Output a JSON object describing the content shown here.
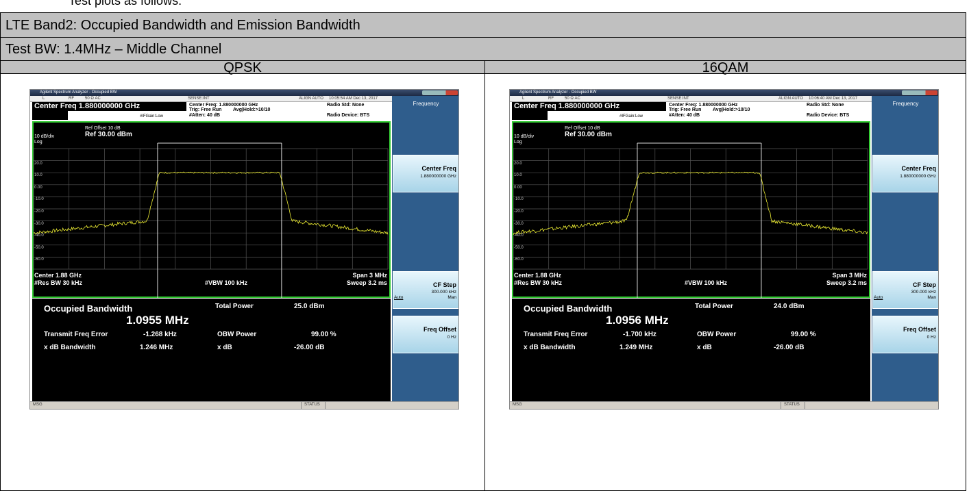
{
  "heading": "Test plots as follows:",
  "table": {
    "title": "LTE Band2: Occupied Bandwidth and Emission Bandwidth",
    "subtitle": "Test BW: 1.4MHz – Middle Channel",
    "columns": [
      "QPSK",
      "16QAM"
    ]
  },
  "screens": [
    {
      "app_title": "Agilent Spectrum Analyzer - Occupied BW",
      "status": [
        "L",
        "RF",
        "50 Ω AC",
        "SENSE:INT",
        "ALIGN AUTO"
      ],
      "timestamp": "10:05:54 AM Dec 13, 2017",
      "center_freq_box": "Center Freq 1.880000000 GHz",
      "info": {
        "center_freq": "Center Freq: 1.880000000 GHz",
        "trig": "Trig: Free Run",
        "avg": "Avg|Hold:>10/10",
        "ifgain": "#IFGain:Low",
        "atten": "#Atten: 40 dB",
        "radio_std": "Radio Std: None",
        "radio_device": "Radio Device: BTS"
      },
      "ref_offset": "Ref Offset 10 dB",
      "scale": "10 dB/div",
      "ref_level": "Ref 30.00 dBm",
      "log": "Log",
      "y_labels": [
        "20.0",
        "10.0",
        "0.00",
        "-10.0",
        "-20.0",
        "-30.0",
        "-40.0",
        "-50.0",
        "-60.0"
      ],
      "center": "Center 1.88 GHz",
      "res_bw": "#Res BW 30 kHz",
      "vbw": "#VBW 100 kHz",
      "span": "Span 3 MHz",
      "sweep": "Sweep 3.2 ms",
      "results": {
        "obw_label": "Occupied Bandwidth",
        "obw_value": "1.0955 MHz",
        "total_power_label": "Total Power",
        "total_power": "25.0 dBm",
        "freq_error_label": "Transmit Freq Error",
        "freq_error": "-1.268 kHz",
        "obw_power_label": "OBW Power",
        "obw_power": "99.00 %",
        "xdb_bw_label": "x dB Bandwidth",
        "xdb_bw": "1.246 MHz",
        "xdb_label": "x dB",
        "xdb": "-26.00 dB"
      },
      "softkeys": {
        "menu": "Frequency",
        "center_freq": "Center Freq",
        "center_freq_value": "1.880000000 GHz",
        "cf_step": "CF Step",
        "cf_step_value": "300.000 kHz",
        "auto": "Auto",
        "man": "Man",
        "freq_offset": "Freq Offset",
        "freq_offset_value": "0 Hz"
      },
      "msg": "MSG",
      "status_label": "STATUS"
    },
    {
      "app_title": "Agilent Spectrum Analyzer - Occupied BW",
      "status": [
        "L",
        "RF",
        "50 Ω AC",
        "SENSE:INT",
        "ALIGN AUTO"
      ],
      "timestamp": "10:06:40 AM Dec 13, 2017",
      "center_freq_box": "Center Freq 1.880000000 GHz",
      "info": {
        "center_freq": "Center Freq: 1.880000000 GHz",
        "trig": "Trig: Free Run",
        "avg": "Avg|Hold:>10/10",
        "ifgain": "#IFGain:Low",
        "atten": "#Atten: 40 dB",
        "radio_std": "Radio Std: None",
        "radio_device": "Radio Device: BTS"
      },
      "ref_offset": "Ref Offset 10 dB",
      "scale": "10 dB/div",
      "ref_level": "Ref 30.00 dBm",
      "log": "Log",
      "y_labels": [
        "20.0",
        "10.0",
        "0.00",
        "-10.0",
        "-20.0",
        "-30.0",
        "-40.0",
        "-50.0",
        "-60.0"
      ],
      "center": "Center 1.88 GHz",
      "res_bw": "#Res BW 30 kHz",
      "vbw": "#VBW 100 kHz",
      "span": "Span 3 MHz",
      "sweep": "Sweep 3.2 ms",
      "results": {
        "obw_label": "Occupied Bandwidth",
        "obw_value": "1.0956 MHz",
        "total_power_label": "Total Power",
        "total_power": "24.0 dBm",
        "freq_error_label": "Transmit Freq Error",
        "freq_error": "-1.700 kHz",
        "obw_power_label": "OBW Power",
        "obw_power": "99.00 %",
        "xdb_bw_label": "x dB Bandwidth",
        "xdb_bw": "1.249 MHz",
        "xdb_label": "x dB",
        "xdb": "-26.00 dB"
      },
      "softkeys": {
        "menu": "Frequency",
        "center_freq": "Center Freq",
        "center_freq_value": "1.880000000 GHz",
        "cf_step": "CF Step",
        "cf_step_value": "300.000 kHz",
        "auto": "Auto",
        "man": "Man",
        "freq_offset": "Freq Offset",
        "freq_offset_value": "0 Hz"
      },
      "msg": "MSG",
      "status_label": "STATUS"
    }
  ]
}
